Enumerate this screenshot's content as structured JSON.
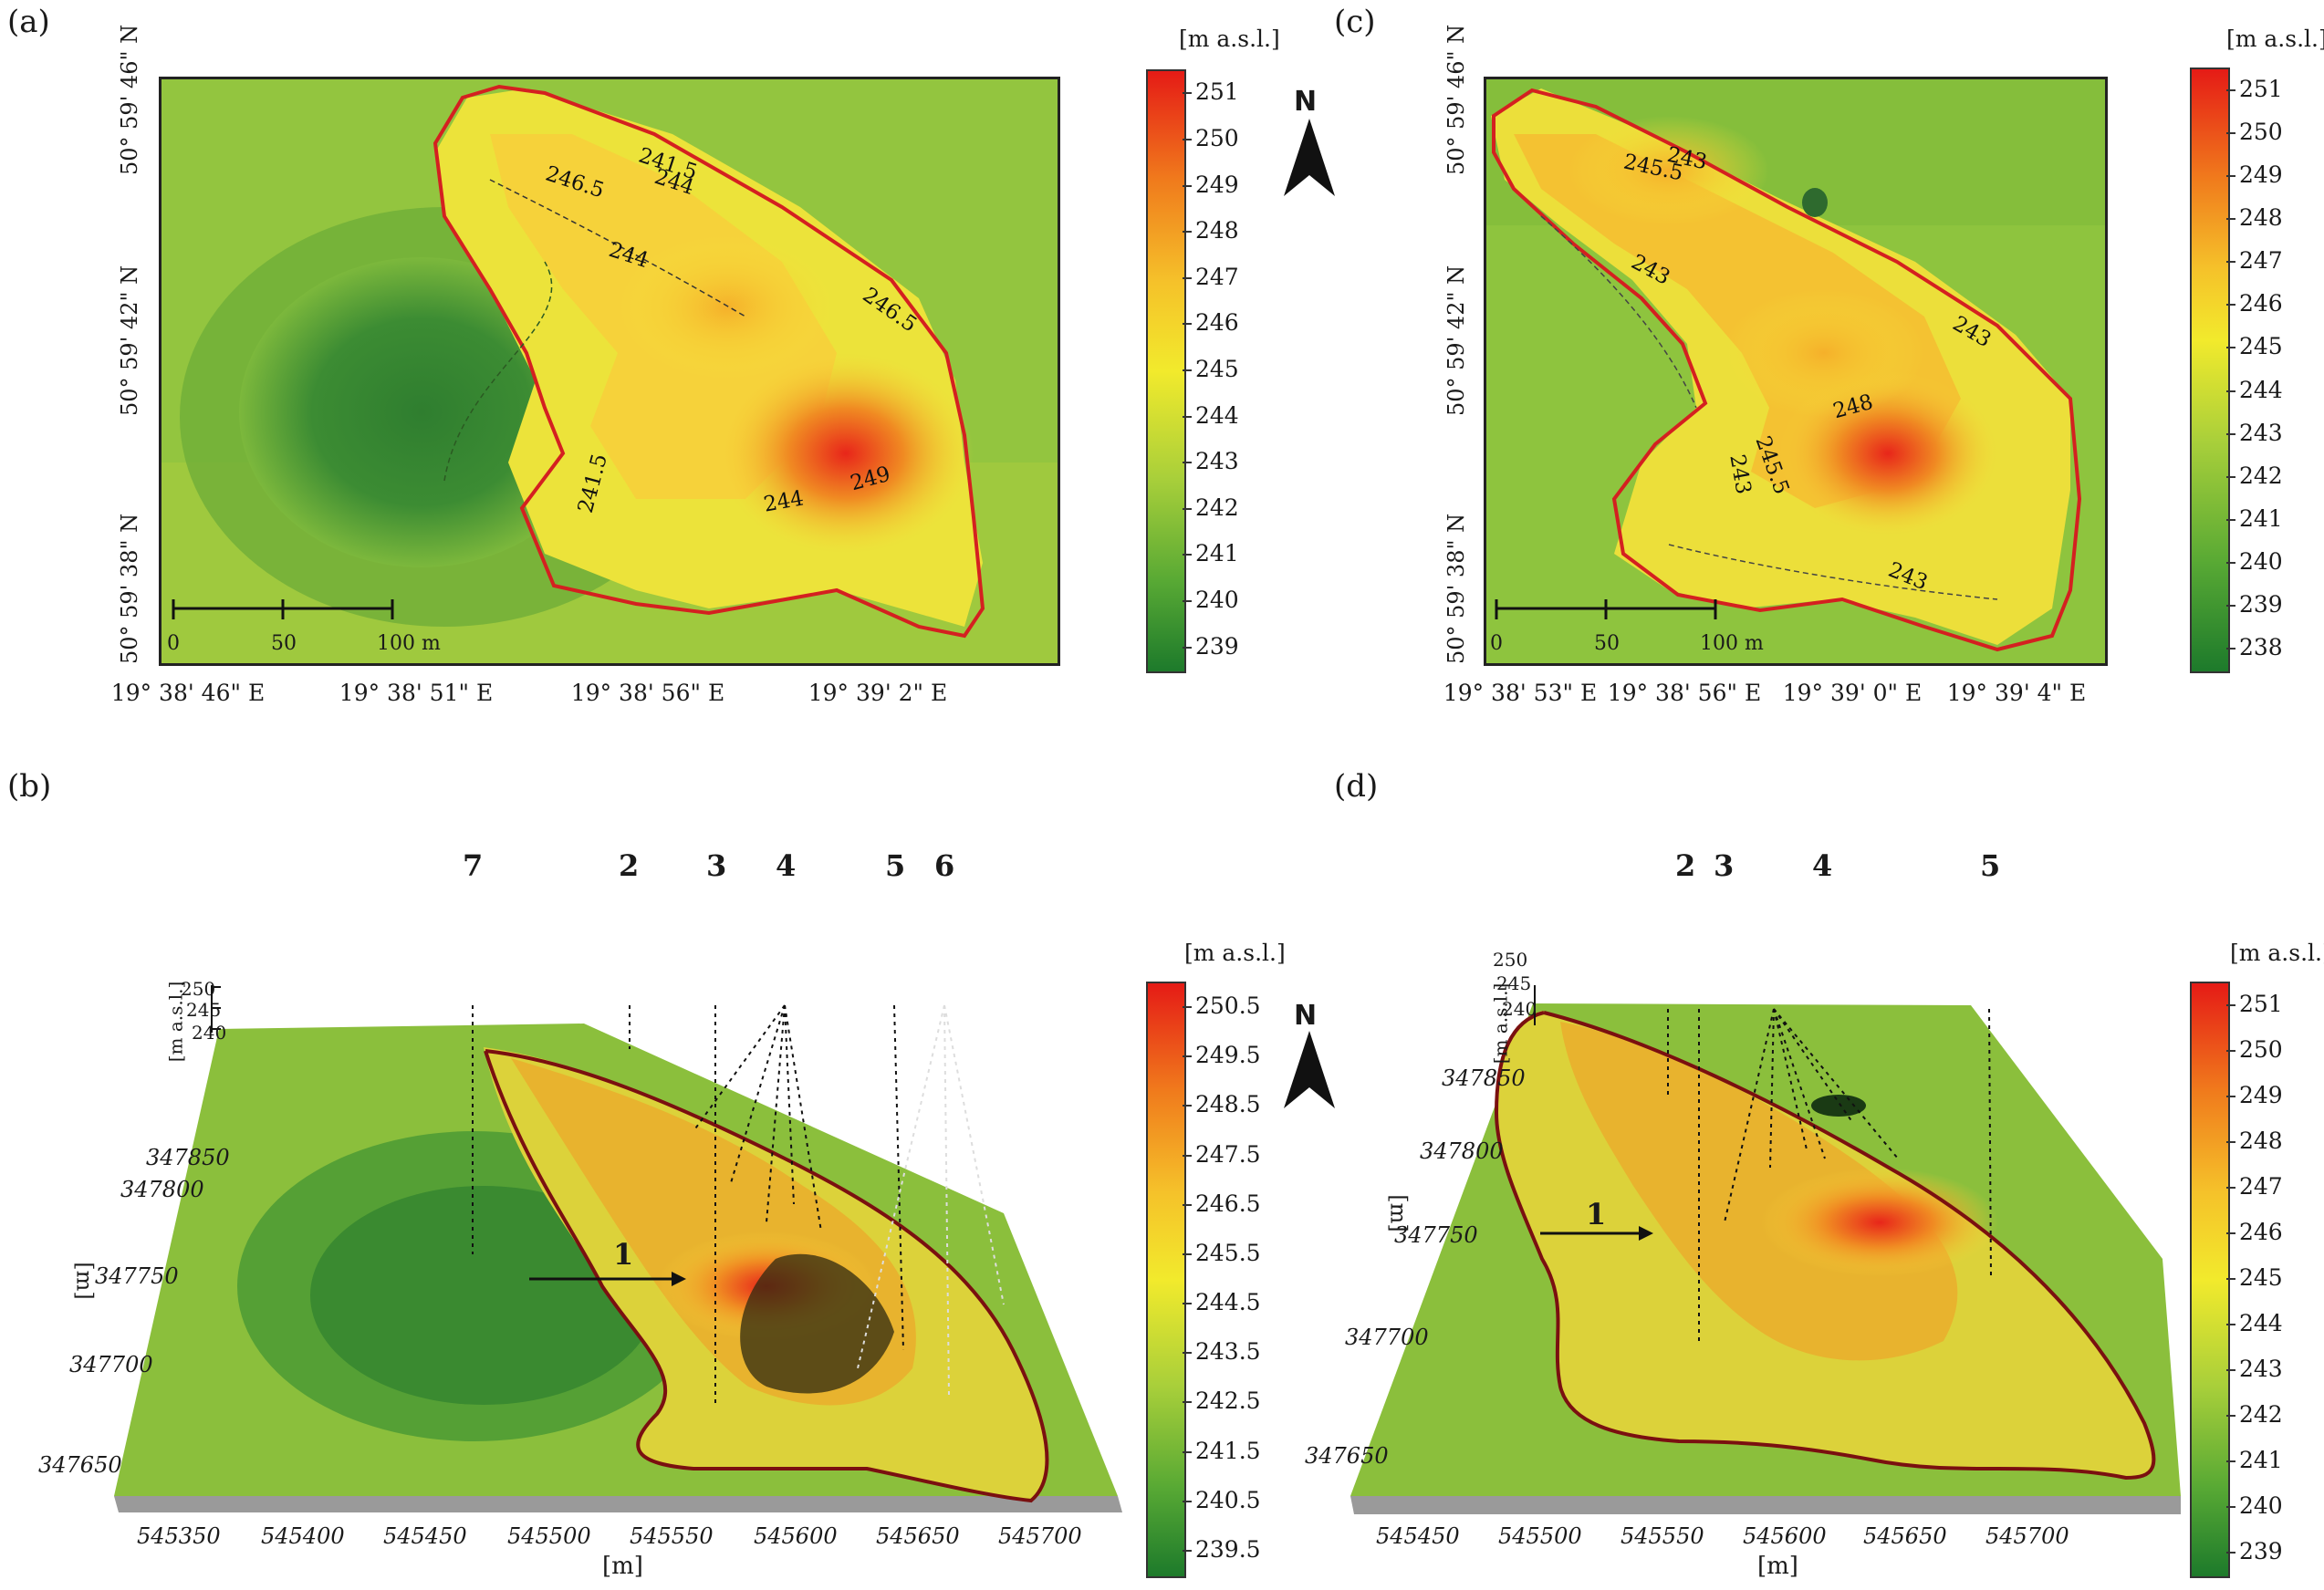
{
  "panels": {
    "a": {
      "label": "(a)",
      "lat_labels": [
        "50° 59' 46\" N",
        "50° 59' 42\" N",
        "50° 59' 38\" N"
      ],
      "lon_labels": [
        "19° 38' 46\" E",
        "19° 38' 51\" E",
        "19° 38' 56\" E",
        "19° 39' 2\" E"
      ],
      "scale": {
        "labels": [
          "0",
          "50",
          "100 m"
        ]
      },
      "contours": [
        "241.5",
        "244",
        "246.5",
        "244",
        "246.5",
        "249",
        "244",
        "241.5"
      ],
      "north": "N",
      "legend": {
        "unit": "[m a.s.l.]",
        "labels": [
          "251",
          "250",
          "249",
          "248",
          "247",
          "246",
          "245",
          "244",
          "243",
          "242",
          "241",
          "240",
          "239"
        ]
      }
    },
    "c": {
      "label": "(c)",
      "lat_labels": [
        "50° 59' 46\" N",
        "50° 59' 42\" N",
        "50° 59' 38\" N"
      ],
      "lon_labels": [
        "19° 38' 53\" E",
        "19° 38' 56\" E",
        "19° 39' 0\" E",
        "19° 39' 4\" E"
      ],
      "scale": {
        "labels": [
          "0",
          "50",
          "100 m"
        ]
      },
      "contours": [
        "243",
        "245.5",
        "243",
        "243",
        "248",
        "245.5",
        "243",
        "243"
      ],
      "legend": {
        "unit": "[m a.s.l.]",
        "labels": [
          "251",
          "250",
          "249",
          "248",
          "247",
          "246",
          "245",
          "244",
          "243",
          "242",
          "241",
          "240",
          "239",
          "238"
        ]
      }
    },
    "b": {
      "label": "(b)",
      "numbers": [
        "7",
        "2",
        "3",
        "4",
        "5",
        "6",
        "1"
      ],
      "y_labels": [
        "347850",
        "347800",
        "347750",
        "347700",
        "347650"
      ],
      "y_unit": "[m]",
      "z_labels": [
        "250",
        "245",
        "240"
      ],
      "z_unit": "[m a.s.l.]",
      "x_labels": [
        "545350",
        "545400",
        "545450",
        "545500",
        "545550",
        "545600",
        "545650",
        "545700"
      ],
      "x_unit": "[m]",
      "north": "N",
      "legend": {
        "unit": "[m a.s.l.]",
        "labels": [
          "250.5",
          "249.5",
          "248.5",
          "247.5",
          "246.5",
          "245.5",
          "244.5",
          "243.5",
          "242.5",
          "241.5",
          "240.5",
          "239.5"
        ]
      }
    },
    "d": {
      "label": "(d)",
      "numbers": [
        "2",
        "3",
        "4",
        "5",
        "1"
      ],
      "y_labels": [
        "347850",
        "347800",
        "347750",
        "347700",
        "347650"
      ],
      "y_unit": "[m]",
      "z_labels": [
        "250",
        "245",
        "240"
      ],
      "z_unit": "[m a.s.l.]",
      "x_labels": [
        "545450",
        "545500",
        "545550",
        "545600",
        "545650",
        "545700"
      ],
      "x_unit": "[m]",
      "legend": {
        "unit": "[m a.s.l.]",
        "labels": [
          "251",
          "250",
          "249",
          "248",
          "247",
          "246",
          "245",
          "244",
          "243",
          "242",
          "241",
          "240",
          "239"
        ]
      }
    }
  },
  "colors": {
    "low": "#1f7a2a",
    "mid": "#f2e62a",
    "high": "#e8261a",
    "outline": "#d42020",
    "outline3d": "#7a1010"
  }
}
